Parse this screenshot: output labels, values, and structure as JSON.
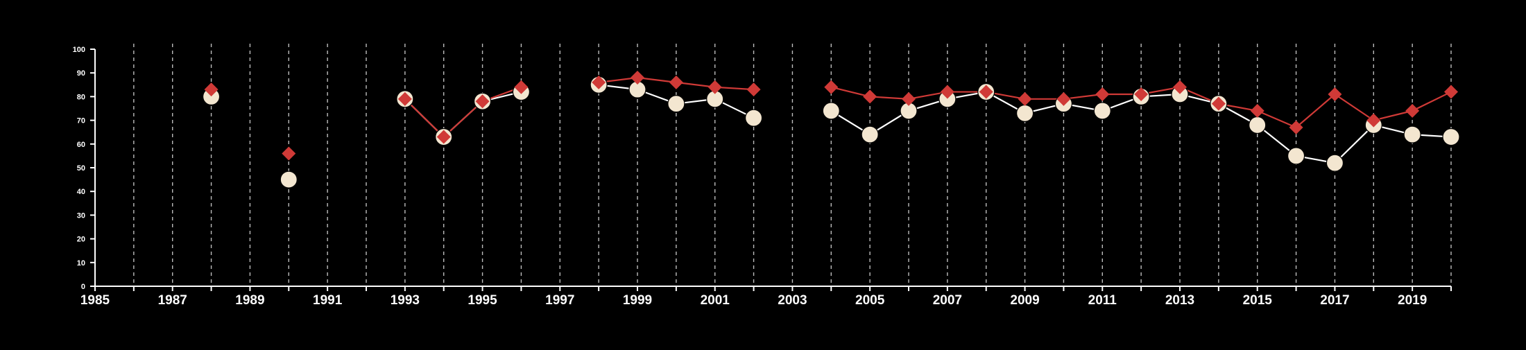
{
  "chart_data": {
    "type": "line",
    "title": "",
    "xlabel": "",
    "ylabel": "",
    "xlim": [
      1985,
      2020
    ],
    "ylim": [
      0,
      100
    ],
    "y_ticks": [
      0,
      10,
      20,
      30,
      40,
      50,
      60,
      70,
      80,
      90,
      100
    ],
    "x_ticks": [
      1985,
      1987,
      1989,
      1991,
      1993,
      1995,
      1997,
      1999,
      2001,
      2003,
      2005,
      2007,
      2009,
      2011,
      2013,
      2015,
      2017,
      2019
    ],
    "x_tick_labels": [
      "1985",
      "1987",
      "1989",
      "1991",
      "1993",
      "1995",
      "1997",
      "1999",
      "2001",
      "2003",
      "2005",
      "2007",
      "2009",
      "2011",
      "2013",
      "2015",
      "2017",
      "2019"
    ],
    "grid": {
      "vertical": "dashed",
      "horizontal": false
    },
    "legend": "none",
    "x": [
      1985,
      1986,
      1987,
      1988,
      1989,
      1990,
      1991,
      1992,
      1993,
      1994,
      1995,
      1996,
      1997,
      1998,
      1999,
      2000,
      2001,
      2002,
      2003,
      2004,
      2005,
      2006,
      2007,
      2008,
      2009,
      2010,
      2011,
      2012,
      2013,
      2014,
      2015,
      2016,
      2017,
      2018,
      2019,
      2020
    ],
    "series": [
      {
        "marker": "circle",
        "color": "#f3e6d0",
        "line_color": "#ffffff",
        "values": [
          null,
          null,
          null,
          80,
          null,
          45,
          null,
          null,
          79,
          63,
          78,
          82,
          null,
          85,
          83,
          77,
          79,
          71,
          null,
          74,
          64,
          74,
          79,
          82,
          73,
          77,
          74,
          80,
          81,
          77,
          68,
          55,
          52,
          68,
          64,
          63
        ]
      },
      {
        "marker": "diamond",
        "color": "#d03a37",
        "line_color": "#d03a37",
        "values": [
          null,
          null,
          null,
          83,
          null,
          56,
          null,
          null,
          79,
          63,
          78,
          84,
          null,
          86,
          88,
          86,
          84,
          83,
          null,
          84,
          80,
          79,
          82,
          82,
          79,
          79,
          81,
          81,
          84,
          77,
          74,
          67,
          81,
          70,
          74,
          82
        ]
      }
    ]
  }
}
